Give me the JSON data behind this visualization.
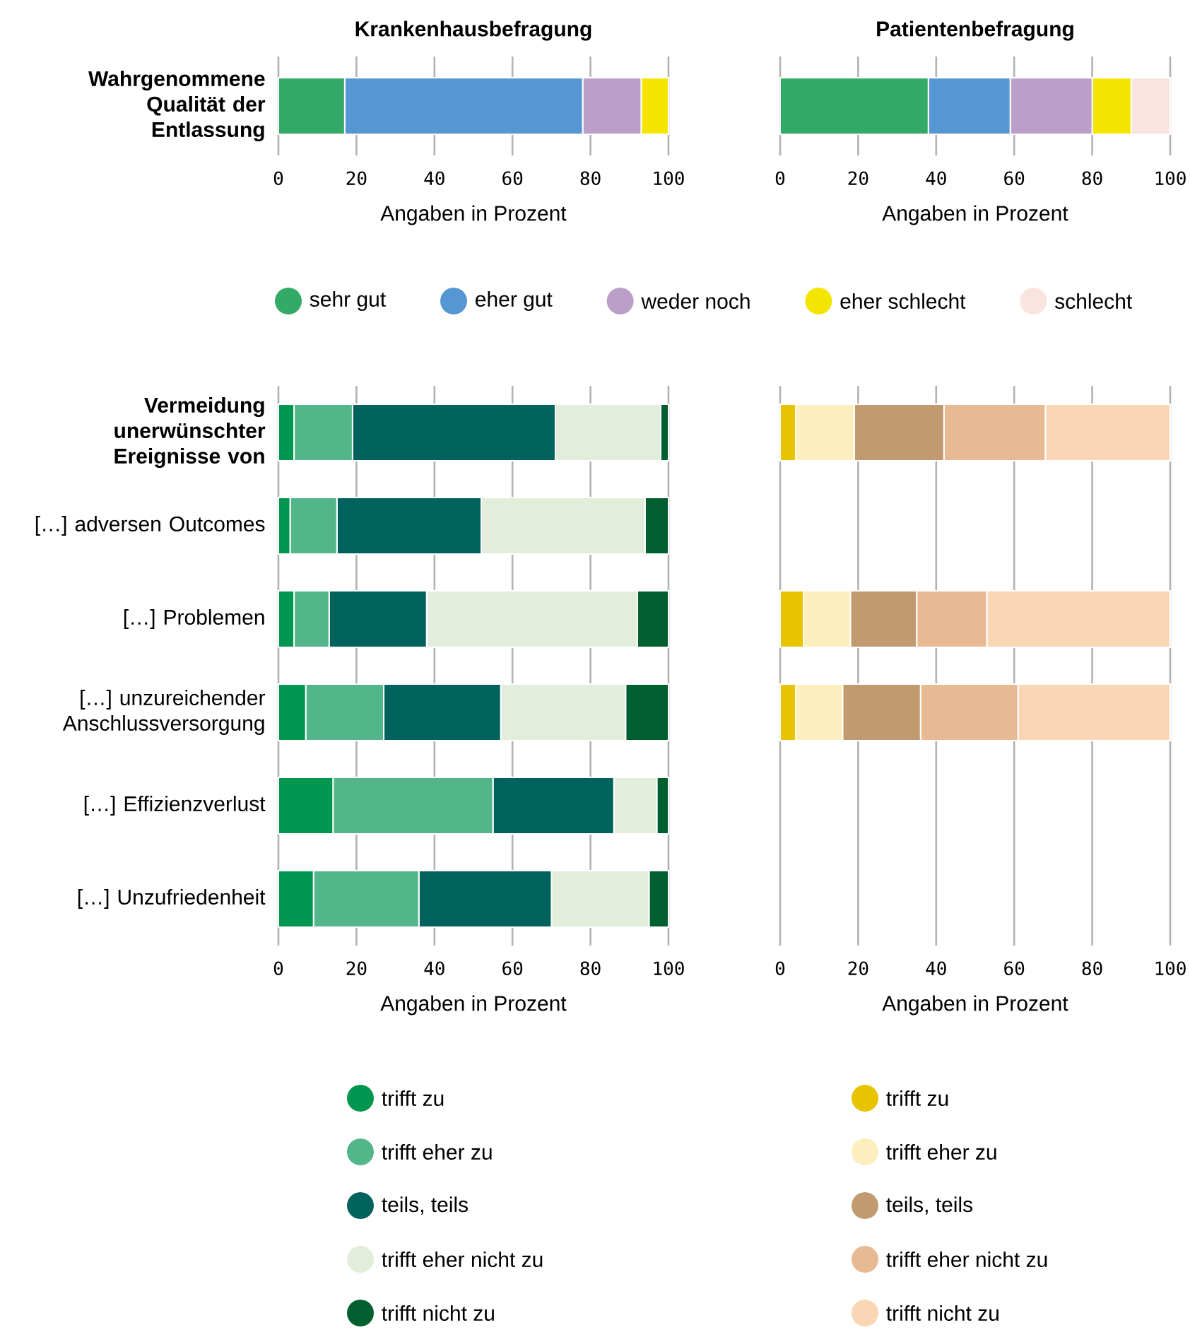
{
  "chart_data": [
    {
      "type": "bar",
      "orientation": "horizontal",
      "stacked": true,
      "title": "Krankenhausbefragung",
      "xlabel": "Angaben in Prozent",
      "categories": [
        "Wahrgenommene Qualität der Entlassung"
      ],
      "xlim": [
        0,
        100
      ],
      "xticks": [
        0,
        20,
        40,
        60,
        80,
        100
      ],
      "grid": "x",
      "series": [
        {
          "color": "#33aa66",
          "values": [
            17
          ]
        },
        {
          "color": "#5597d2",
          "values": [
            61
          ]
        },
        {
          "color": "#bb9fc9",
          "values": [
            15
          ]
        },
        {
          "color": "#f3e500",
          "values": [
            7
          ]
        }
      ]
    },
    {
      "type": "bar",
      "orientation": "horizontal",
      "stacked": true,
      "title": "Patientenbefragung",
      "xlabel": "Angaben in Prozent",
      "categories": [
        null
      ],
      "xlim": [
        0,
        100
      ],
      "xticks": [
        0,
        20,
        40,
        60,
        80,
        100
      ],
      "grid": "x",
      "legend": "bottom",
      "series": [
        {
          "name": "sehr gut",
          "color": "#33aa66",
          "values": [
            38
          ]
        },
        {
          "name": "eher gut",
          "color": "#5597d2",
          "values": [
            21
          ]
        },
        {
          "name": "weder noch",
          "color": "#bb9fc9",
          "values": [
            21
          ]
        },
        {
          "name": "eher schlecht",
          "color": "#f3e500",
          "values": [
            10
          ]
        },
        {
          "name": "schlecht",
          "color": "#f9e4e0",
          "values": [
            10
          ]
        }
      ]
    },
    {
      "type": "bar",
      "orientation": "horizontal",
      "stacked": true,
      "xlabel": "Angaben in Prozent",
      "categories": [
        "Vermeidung unerwünschter Ereignisse von",
        "[…] adversen Outcomes",
        "[…] Problemen",
        "[…] unzureichender Anschlussversorgung",
        "[…] Effizienzverlust",
        "[…] Unzufriedenheit"
      ],
      "xlim": [
        0,
        100
      ],
      "xticks": [
        0,
        20,
        40,
        60,
        80,
        100
      ],
      "grid": "x",
      "legend": "bottom",
      "series": [
        {
          "name": "trifft zu",
          "color": "#00964f",
          "values": [
            4,
            3,
            4,
            7,
            14,
            9
          ]
        },
        {
          "name": "trifft eher zu",
          "color": "#52b68a",
          "values": [
            15,
            12,
            9,
            20,
            41,
            27
          ]
        },
        {
          "name": "teils, teils",
          "color": "#00625c",
          "values": [
            52,
            37,
            25,
            30,
            31,
            34
          ]
        },
        {
          "name": "trifft eher nicht zu",
          "color": "#e2eedb",
          "values": [
            27,
            42,
            54,
            32,
            11,
            25
          ]
        },
        {
          "name": "trifft nicht zu",
          "color": "#005f2e",
          "values": [
            2,
            6,
            8,
            11,
            3,
            5
          ]
        }
      ]
    },
    {
      "type": "bar",
      "orientation": "horizontal",
      "stacked": true,
      "xlabel": "Angaben in Prozent",
      "categories": [
        null,
        null,
        null,
        null,
        null,
        null
      ],
      "xlim": [
        0,
        100
      ],
      "xticks": [
        0,
        20,
        40,
        60,
        80,
        100
      ],
      "grid": "x",
      "legend": "bottom",
      "series": [
        {
          "name": "trifft zu",
          "color": "#e8c300",
          "values": [
            4,
            null,
            6,
            4,
            null,
            null
          ]
        },
        {
          "name": "trifft eher zu",
          "color": "#feedbd",
          "values": [
            15,
            null,
            12,
            12,
            null,
            null
          ]
        },
        {
          "name": "teils, teils",
          "color": "#c29a70",
          "values": [
            23,
            null,
            17,
            20,
            null,
            null
          ]
        },
        {
          "name": "trifft eher nicht zu",
          "color": "#e7ba94",
          "values": [
            26,
            null,
            18,
            25,
            null,
            null
          ]
        },
        {
          "name": "trifft nicht zu",
          "color": "#fbd6b5",
          "values": [
            32,
            null,
            47,
            39,
            null,
            null
          ]
        }
      ]
    }
  ]
}
